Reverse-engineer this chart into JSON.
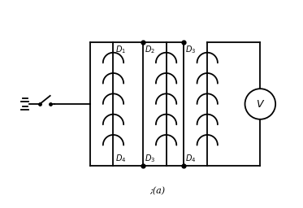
{
  "bg_color": "#ffffff",
  "line_color": "#000000",
  "caption": ";(a)",
  "fig_width": 3.73,
  "fig_height": 2.56,
  "dpi": 100
}
